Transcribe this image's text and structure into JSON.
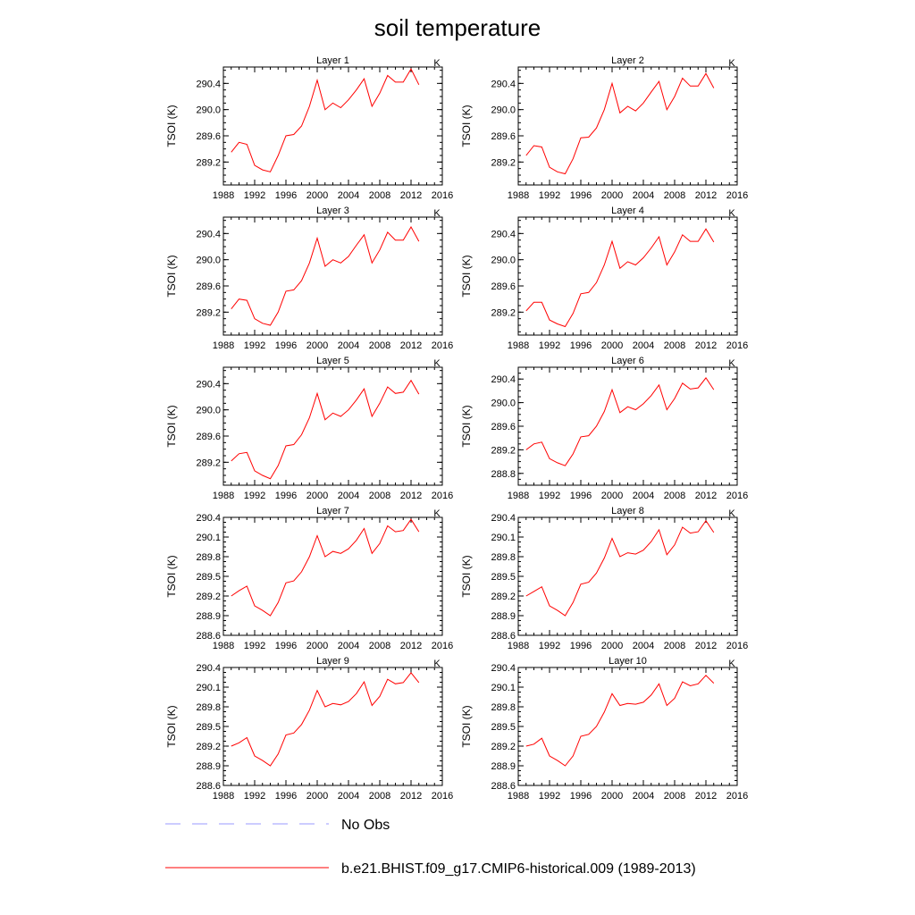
{
  "title": "soil temperature",
  "colors": {
    "model_line": "#ff0000",
    "obs_line": "#9999ff",
    "axes": "#000000"
  },
  "legend": [
    {
      "label": "No Obs",
      "style": "dashed",
      "color": "#9999ff"
    },
    {
      "label": "b.e21.BHIST.f09_g17.CMIP6-historical.009 (1989-2013)",
      "style": "solid",
      "color": "#ff0000"
    }
  ],
  "chart_data": [
    {
      "type": "line",
      "title": "Layer 1",
      "unit_label": "K",
      "ylabel": "TSOI  (K)",
      "xlim": [
        1988,
        2016
      ],
      "ylim": [
        288.85,
        290.65
      ],
      "yticks": [
        289.2,
        289.6,
        290.0,
        290.4
      ],
      "xticks": [
        1988,
        1992,
        1996,
        2000,
        2004,
        2008,
        2012,
        2016
      ],
      "series": [
        {
          "name": "b.e21.BHIST.f09_g17.CMIP6-historical.009 (1989-2013)",
          "x": [
            1989,
            1990,
            1991,
            1992,
            1993,
            1994,
            1995,
            1996,
            1997,
            1998,
            1999,
            2000,
            2001,
            2002,
            2003,
            2004,
            2005,
            2006,
            2007,
            2008,
            2009,
            2010,
            2011,
            2012,
            2013
          ],
          "y": [
            289.35,
            289.5,
            289.47,
            289.15,
            289.08,
            289.05,
            289.3,
            289.6,
            289.62,
            289.75,
            290.05,
            290.45,
            290.0,
            290.1,
            290.03,
            290.15,
            290.3,
            290.47,
            290.05,
            290.25,
            290.52,
            290.42,
            290.42,
            290.62,
            290.38
          ]
        }
      ]
    },
    {
      "type": "line",
      "title": "Layer 2",
      "unit_label": "K",
      "ylabel": "TSOI  (K)",
      "xlim": [
        1988,
        2016
      ],
      "ylim": [
        288.85,
        290.65
      ],
      "yticks": [
        289.2,
        289.6,
        290.0,
        290.4
      ],
      "xticks": [
        1988,
        1992,
        1996,
        2000,
        2004,
        2008,
        2012,
        2016
      ],
      "series": [
        {
          "name": "b.e21.BHIST.f09_g17.CMIP6-historical.009 (1989-2013)",
          "x": [
            1989,
            1990,
            1991,
            1992,
            1993,
            1994,
            1995,
            1996,
            1997,
            1998,
            1999,
            2000,
            2001,
            2002,
            2003,
            2004,
            2005,
            2006,
            2007,
            2008,
            2009,
            2010,
            2011,
            2012,
            2013
          ],
          "y": [
            289.3,
            289.45,
            289.43,
            289.12,
            289.05,
            289.02,
            289.25,
            289.57,
            289.58,
            289.72,
            290.0,
            290.4,
            289.95,
            290.05,
            289.98,
            290.1,
            290.27,
            290.43,
            290.0,
            290.2,
            290.48,
            290.36,
            290.36,
            290.55,
            290.33
          ]
        }
      ]
    },
    {
      "type": "line",
      "title": "Layer 3",
      "unit_label": "K",
      "ylabel": "TSOI  (K)",
      "xlim": [
        1988,
        2016
      ],
      "ylim": [
        288.85,
        290.65
      ],
      "yticks": [
        289.2,
        289.6,
        290.0,
        290.4
      ],
      "xticks": [
        1988,
        1992,
        1996,
        2000,
        2004,
        2008,
        2012,
        2016
      ],
      "series": [
        {
          "name": "b.e21.BHIST.f09_g17.CMIP6-historical.009 (1989-2013)",
          "x": [
            1989,
            1990,
            1991,
            1992,
            1993,
            1994,
            1995,
            1996,
            1997,
            1998,
            1999,
            2000,
            2001,
            2002,
            2003,
            2004,
            2005,
            2006,
            2007,
            2008,
            2009,
            2010,
            2011,
            2012,
            2013
          ],
          "y": [
            289.25,
            289.4,
            289.38,
            289.1,
            289.03,
            289.0,
            289.2,
            289.52,
            289.54,
            289.68,
            289.95,
            290.33,
            289.9,
            290.0,
            289.95,
            290.05,
            290.22,
            290.38,
            289.95,
            290.15,
            290.42,
            290.3,
            290.3,
            290.5,
            290.28
          ]
        }
      ]
    },
    {
      "type": "line",
      "title": "Layer 4",
      "unit_label": "K",
      "ylabel": "TSOI  (K)",
      "xlim": [
        1988,
        2016
      ],
      "ylim": [
        288.85,
        290.65
      ],
      "yticks": [
        289.2,
        289.6,
        290.0,
        290.4
      ],
      "xticks": [
        1988,
        1992,
        1996,
        2000,
        2004,
        2008,
        2012,
        2016
      ],
      "series": [
        {
          "name": "b.e21.BHIST.f09_g17.CMIP6-historical.009 (1989-2013)",
          "x": [
            1989,
            1990,
            1991,
            1992,
            1993,
            1994,
            1995,
            1996,
            1997,
            1998,
            1999,
            2000,
            2001,
            2002,
            2003,
            2004,
            2005,
            2006,
            2007,
            2008,
            2009,
            2010,
            2011,
            2012,
            2013
          ],
          "y": [
            289.22,
            289.35,
            289.35,
            289.08,
            289.02,
            288.98,
            289.18,
            289.48,
            289.5,
            289.65,
            289.92,
            290.28,
            289.87,
            289.97,
            289.92,
            290.03,
            290.18,
            290.35,
            289.92,
            290.12,
            290.38,
            290.28,
            290.28,
            290.47,
            290.27
          ]
        }
      ]
    },
    {
      "type": "line",
      "title": "Layer 5",
      "unit_label": "K",
      "ylabel": "TSOI  (K)",
      "xlim": [
        1988,
        2016
      ],
      "ylim": [
        288.85,
        290.65
      ],
      "yticks": [
        289.2,
        289.6,
        290.0,
        290.4
      ],
      "xticks": [
        1988,
        1992,
        1996,
        2000,
        2004,
        2008,
        2012,
        2016
      ],
      "series": [
        {
          "name": "b.e21.BHIST.f09_g17.CMIP6-historical.009 (1989-2013)",
          "x": [
            1989,
            1990,
            1991,
            1992,
            1993,
            1994,
            1995,
            1996,
            1997,
            1998,
            1999,
            2000,
            2001,
            2002,
            2003,
            2004,
            2005,
            2006,
            2007,
            2008,
            2009,
            2010,
            2011,
            2012,
            2013
          ],
          "y": [
            289.22,
            289.33,
            289.35,
            289.07,
            289.0,
            288.95,
            289.15,
            289.45,
            289.47,
            289.62,
            289.88,
            290.25,
            289.85,
            289.95,
            289.9,
            290.0,
            290.15,
            290.32,
            289.9,
            290.1,
            290.35,
            290.25,
            290.27,
            290.45,
            290.24
          ]
        }
      ]
    },
    {
      "type": "line",
      "title": "Layer 6",
      "unit_label": "K",
      "ylabel": "TSOI  (K)",
      "xlim": [
        1988,
        2016
      ],
      "ylim": [
        288.6,
        290.6
      ],
      "yticks": [
        288.8,
        289.2,
        289.6,
        290.0,
        290.4
      ],
      "xticks": [
        1988,
        1992,
        1996,
        2000,
        2004,
        2008,
        2012,
        2016
      ],
      "series": [
        {
          "name": "b.e21.BHIST.f09_g17.CMIP6-historical.009 (1989-2013)",
          "x": [
            1989,
            1990,
            1991,
            1992,
            1993,
            1994,
            1995,
            1996,
            1997,
            1998,
            1999,
            2000,
            2001,
            2002,
            2003,
            2004,
            2005,
            2006,
            2007,
            2008,
            2009,
            2010,
            2011,
            2012,
            2013
          ],
          "y": [
            289.2,
            289.3,
            289.33,
            289.05,
            288.98,
            288.93,
            289.13,
            289.42,
            289.44,
            289.6,
            289.85,
            290.22,
            289.83,
            289.93,
            289.88,
            289.98,
            290.12,
            290.3,
            289.88,
            290.07,
            290.33,
            290.23,
            290.25,
            290.42,
            290.22
          ]
        }
      ]
    },
    {
      "type": "line",
      "title": "Layer 7",
      "unit_label": "K",
      "ylabel": "TSOI  (K)",
      "xlim": [
        1988,
        2016
      ],
      "ylim": [
        288.6,
        290.4
      ],
      "yticks": [
        288.6,
        288.9,
        289.2,
        289.5,
        289.8,
        290.1,
        290.4
      ],
      "xticks": [
        1988,
        1992,
        1996,
        2000,
        2004,
        2008,
        2012,
        2016
      ],
      "series": [
        {
          "name": "b.e21.BHIST.f09_g17.CMIP6-historical.009 (1989-2013)",
          "x": [
            1989,
            1990,
            1991,
            1992,
            1993,
            1994,
            1995,
            1996,
            1997,
            1998,
            1999,
            2000,
            2001,
            2002,
            2003,
            2004,
            2005,
            2006,
            2007,
            2008,
            2009,
            2010,
            2011,
            2012,
            2013
          ],
          "y": [
            289.2,
            289.28,
            289.35,
            289.05,
            288.98,
            288.9,
            289.1,
            289.4,
            289.43,
            289.57,
            289.8,
            290.12,
            289.8,
            289.88,
            289.85,
            289.92,
            290.05,
            290.23,
            289.85,
            290.0,
            290.27,
            290.18,
            290.2,
            290.37,
            290.18
          ]
        }
      ]
    },
    {
      "type": "line",
      "title": "Layer 8",
      "unit_label": "K",
      "ylabel": "TSOI  (K)",
      "xlim": [
        1988,
        2016
      ],
      "ylim": [
        288.6,
        290.4
      ],
      "yticks": [
        288.6,
        288.9,
        289.2,
        289.5,
        289.8,
        290.1,
        290.4
      ],
      "xticks": [
        1988,
        1992,
        1996,
        2000,
        2004,
        2008,
        2012,
        2016
      ],
      "series": [
        {
          "name": "b.e21.BHIST.f09_g17.CMIP6-historical.009 (1989-2013)",
          "x": [
            1989,
            1990,
            1991,
            1992,
            1993,
            1994,
            1995,
            1996,
            1997,
            1998,
            1999,
            2000,
            2001,
            2002,
            2003,
            2004,
            2005,
            2006,
            2007,
            2008,
            2009,
            2010,
            2011,
            2012,
            2013
          ],
          "y": [
            289.2,
            289.27,
            289.34,
            289.05,
            288.98,
            288.9,
            289.1,
            289.38,
            289.41,
            289.55,
            289.78,
            290.08,
            289.8,
            289.86,
            289.84,
            289.9,
            290.03,
            290.21,
            289.83,
            289.98,
            290.25,
            290.16,
            290.18,
            290.35,
            290.17
          ]
        }
      ]
    },
    {
      "type": "line",
      "title": "Layer 9",
      "unit_label": "K",
      "ylabel": "TSOI  (K)",
      "xlim": [
        1988,
        2016
      ],
      "ylim": [
        288.6,
        290.4
      ],
      "yticks": [
        288.6,
        288.9,
        289.2,
        289.5,
        289.8,
        290.1,
        290.4
      ],
      "xticks": [
        1988,
        1992,
        1996,
        2000,
        2004,
        2008,
        2012,
        2016
      ],
      "series": [
        {
          "name": "b.e21.BHIST.f09_g17.CMIP6-historical.009 (1989-2013)",
          "x": [
            1989,
            1990,
            1991,
            1992,
            1993,
            1994,
            1995,
            1996,
            1997,
            1998,
            1999,
            2000,
            2001,
            2002,
            2003,
            2004,
            2005,
            2006,
            2007,
            2008,
            2009,
            2010,
            2011,
            2012,
            2013
          ],
          "y": [
            289.2,
            289.25,
            289.33,
            289.05,
            288.98,
            288.9,
            289.08,
            289.37,
            289.4,
            289.53,
            289.75,
            290.05,
            289.8,
            289.85,
            289.83,
            289.88,
            290.0,
            290.18,
            289.82,
            289.96,
            290.22,
            290.15,
            290.17,
            290.32,
            290.17
          ]
        }
      ]
    },
    {
      "type": "line",
      "title": "Layer 10",
      "unit_label": "K",
      "ylabel": "TSOI  (K)",
      "xlim": [
        1988,
        2016
      ],
      "ylim": [
        288.6,
        290.4
      ],
      "yticks": [
        288.6,
        288.9,
        289.2,
        289.5,
        289.8,
        290.1,
        290.4
      ],
      "xticks": [
        1988,
        1992,
        1996,
        2000,
        2004,
        2008,
        2012,
        2016
      ],
      "series": [
        {
          "name": "b.e21.BHIST.f09_g17.CMIP6-historical.009 (1989-2013)",
          "x": [
            1989,
            1990,
            1991,
            1992,
            1993,
            1994,
            1995,
            1996,
            1997,
            1998,
            1999,
            2000,
            2001,
            2002,
            2003,
            2004,
            2005,
            2006,
            2007,
            2008,
            2009,
            2010,
            2011,
            2012,
            2013
          ],
          "y": [
            289.2,
            289.23,
            289.32,
            289.05,
            288.98,
            288.9,
            289.05,
            289.35,
            289.38,
            289.5,
            289.72,
            290.0,
            289.82,
            289.85,
            289.84,
            289.87,
            289.98,
            290.15,
            289.82,
            289.93,
            290.18,
            290.12,
            290.15,
            290.28,
            290.16
          ]
        }
      ]
    }
  ]
}
